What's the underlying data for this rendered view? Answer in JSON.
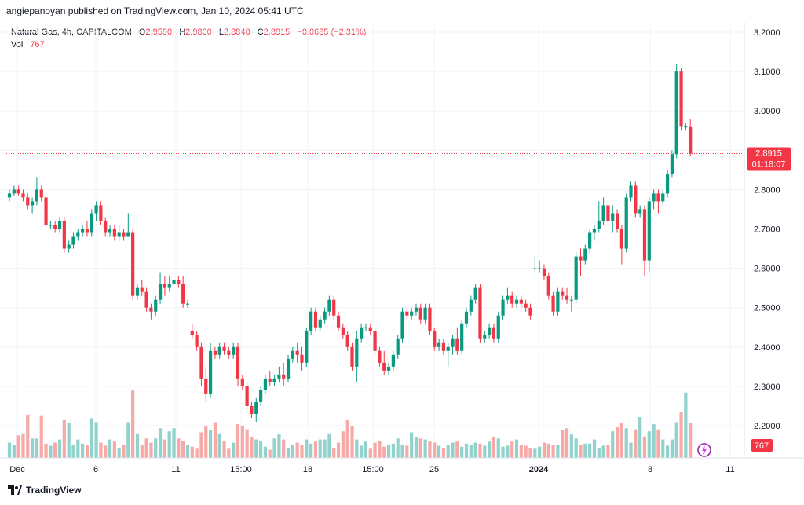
{
  "header": {
    "published": "angiepanoyan published on TradingView.com, Jan 10, 2024 05:41 UTC"
  },
  "legend": {
    "symbol": "Natural Gas, 4h, CAPITALCOM",
    "o_label": "O",
    "o_value": "2.9590",
    "h_label": "H",
    "h_value": "2.9800",
    "l_label": "L",
    "l_value": "2.8840",
    "c_label": "C",
    "c_value": "2.8915",
    "change": "−0.0685 (−2.31%)",
    "vol_label": "Vol",
    "vol_value": "767"
  },
  "price_tag": {
    "price": "2.8915",
    "countdown": "01:18:07"
  },
  "volume_tag": "767",
  "footer": {
    "brand": "TradingView"
  },
  "colors": {
    "up": "#089981",
    "down": "#f23645",
    "up_vol": "#92d2cc",
    "down_vol": "#f7a9a7",
    "grid": "#f0f3fa",
    "text": "#131722"
  },
  "chart_data": {
    "type": "candlestick",
    "title": "Natural Gas, 4h, CAPITALCOM",
    "ylim": [
      2.12,
      3.24
    ],
    "y_ticks": [
      "3.2000",
      "3.1000",
      "3.0000",
      "2.9000",
      "2.8000",
      "2.7000",
      "2.6000",
      "2.5000",
      "2.4000",
      "2.3000",
      "2.2000"
    ],
    "x_ticks": [
      "Dec",
      "6",
      "11",
      "15:00",
      "18",
      "15:00",
      "25",
      "2024",
      "8",
      "11"
    ],
    "last_price": 2.8915,
    "bar_count": 150,
    "candles": [
      [
        2.78,
        2.8,
        2.77,
        2.79
      ],
      [
        2.79,
        2.81,
        2.785,
        2.8
      ],
      [
        2.8,
        2.81,
        2.785,
        2.79
      ],
      [
        2.79,
        2.8,
        2.77,
        2.78
      ],
      [
        2.78,
        2.79,
        2.75,
        2.76
      ],
      [
        2.76,
        2.78,
        2.74,
        2.77
      ],
      [
        2.77,
        2.83,
        2.76,
        2.8
      ],
      [
        2.8,
        2.81,
        2.77,
        2.78
      ],
      [
        2.78,
        2.78,
        2.7,
        2.71
      ],
      [
        2.71,
        2.72,
        2.7,
        2.71
      ],
      [
        2.71,
        2.72,
        2.69,
        2.7
      ],
      [
        2.7,
        2.73,
        2.69,
        2.72
      ],
      [
        2.72,
        2.73,
        2.64,
        2.65
      ],
      [
        2.65,
        2.67,
        2.64,
        2.66
      ],
      [
        2.66,
        2.69,
        2.65,
        2.68
      ],
      [
        2.68,
        2.7,
        2.67,
        2.69
      ],
      [
        2.69,
        2.71,
        2.68,
        2.7
      ],
      [
        2.7,
        2.72,
        2.68,
        2.69
      ],
      [
        2.69,
        2.75,
        2.68,
        2.74
      ],
      [
        2.74,
        2.77,
        2.72,
        2.76
      ],
      [
        2.76,
        2.77,
        2.71,
        2.72
      ],
      [
        2.72,
        2.73,
        2.68,
        2.69
      ],
      [
        2.69,
        2.71,
        2.68,
        2.7
      ],
      [
        2.7,
        2.71,
        2.67,
        2.68
      ],
      [
        2.68,
        2.71,
        2.67,
        2.69
      ],
      [
        2.69,
        2.7,
        2.67,
        2.68
      ],
      [
        2.68,
        2.74,
        2.68,
        2.69
      ],
      [
        2.69,
        2.7,
        2.52,
        2.53
      ],
      [
        2.53,
        2.56,
        2.52,
        2.55
      ],
      [
        2.55,
        2.57,
        2.53,
        2.54
      ],
      [
        2.54,
        2.55,
        2.49,
        2.5
      ],
      [
        2.5,
        2.51,
        2.47,
        2.49
      ],
      [
        2.49,
        2.53,
        2.48,
        2.52
      ],
      [
        2.52,
        2.59,
        2.51,
        2.56
      ],
      [
        2.56,
        2.58,
        2.53,
        2.55
      ],
      [
        2.55,
        2.58,
        2.54,
        2.56
      ],
      [
        2.56,
        2.58,
        2.55,
        2.57
      ],
      [
        2.57,
        2.58,
        2.55,
        2.56
      ],
      [
        2.56,
        2.58,
        2.5,
        2.51
      ],
      [
        2.51,
        2.52,
        2.5,
        2.51
      ],
      [
        2.44,
        2.46,
        2.42,
        2.43
      ],
      [
        2.43,
        2.44,
        2.39,
        2.4
      ],
      [
        2.4,
        2.41,
        2.3,
        2.32
      ],
      [
        2.32,
        2.35,
        2.26,
        2.28
      ],
      [
        2.28,
        2.41,
        2.27,
        2.39
      ],
      [
        2.39,
        2.4,
        2.37,
        2.38
      ],
      [
        2.38,
        2.41,
        2.37,
        2.4
      ],
      [
        2.4,
        2.41,
        2.38,
        2.39
      ],
      [
        2.39,
        2.4,
        2.37,
        2.38
      ],
      [
        2.38,
        2.41,
        2.37,
        2.4
      ],
      [
        2.4,
        2.41,
        2.3,
        2.32
      ],
      [
        2.32,
        2.33,
        2.29,
        2.3
      ],
      [
        2.3,
        2.31,
        2.24,
        2.25
      ],
      [
        2.25,
        2.26,
        2.22,
        2.23
      ],
      [
        2.23,
        2.27,
        2.21,
        2.26
      ],
      [
        2.26,
        2.3,
        2.25,
        2.29
      ],
      [
        2.29,
        2.33,
        2.28,
        2.32
      ],
      [
        2.32,
        2.34,
        2.3,
        2.31
      ],
      [
        2.31,
        2.33,
        2.3,
        2.32
      ],
      [
        2.32,
        2.35,
        2.31,
        2.33
      ],
      [
        2.33,
        2.36,
        2.3,
        2.32
      ],
      [
        2.32,
        2.38,
        2.31,
        2.37
      ],
      [
        2.37,
        2.4,
        2.36,
        2.39
      ],
      [
        2.39,
        2.41,
        2.36,
        2.38
      ],
      [
        2.38,
        2.4,
        2.34,
        2.36
      ],
      [
        2.36,
        2.45,
        2.35,
        2.44
      ],
      [
        2.44,
        2.5,
        2.43,
        2.49
      ],
      [
        2.49,
        2.5,
        2.44,
        2.45
      ],
      [
        2.45,
        2.48,
        2.44,
        2.47
      ],
      [
        2.47,
        2.5,
        2.46,
        2.49
      ],
      [
        2.49,
        2.53,
        2.48,
        2.52
      ],
      [
        2.52,
        2.53,
        2.47,
        2.48
      ],
      [
        2.48,
        2.49,
        2.44,
        2.45
      ],
      [
        2.45,
        2.46,
        2.42,
        2.43
      ],
      [
        2.43,
        2.44,
        2.39,
        2.4
      ],
      [
        2.4,
        2.41,
        2.34,
        2.35
      ],
      [
        2.35,
        2.44,
        2.31,
        2.42
      ],
      [
        2.42,
        2.46,
        2.41,
        2.45
      ],
      [
        2.45,
        2.46,
        2.44,
        2.45
      ],
      [
        2.45,
        2.46,
        2.43,
        2.44
      ],
      [
        2.44,
        2.45,
        2.38,
        2.39
      ],
      [
        2.39,
        2.4,
        2.35,
        2.36
      ],
      [
        2.36,
        2.39,
        2.33,
        2.34
      ],
      [
        2.34,
        2.36,
        2.33,
        2.35
      ],
      [
        2.35,
        2.39,
        2.34,
        2.38
      ],
      [
        2.38,
        2.43,
        2.37,
        2.42
      ],
      [
        2.42,
        2.5,
        2.41,
        2.49
      ],
      [
        2.49,
        2.5,
        2.47,
        2.48
      ],
      [
        2.48,
        2.5,
        2.47,
        2.49
      ],
      [
        2.49,
        2.51,
        2.48,
        2.5
      ],
      [
        2.5,
        2.51,
        2.46,
        2.47
      ],
      [
        2.47,
        2.51,
        2.46,
        2.5
      ],
      [
        2.5,
        2.51,
        2.43,
        2.44
      ],
      [
        2.44,
        2.45,
        2.39,
        2.4
      ],
      [
        2.4,
        2.42,
        2.39,
        2.41
      ],
      [
        2.41,
        2.42,
        2.38,
        2.39
      ],
      [
        2.39,
        2.41,
        2.35,
        2.4
      ],
      [
        2.4,
        2.43,
        2.38,
        2.42
      ],
      [
        2.42,
        2.45,
        2.38,
        2.39
      ],
      [
        2.39,
        2.47,
        2.38,
        2.46
      ],
      [
        2.46,
        2.5,
        2.45,
        2.49
      ],
      [
        2.49,
        2.53,
        2.48,
        2.52
      ],
      [
        2.52,
        2.56,
        2.51,
        2.55
      ],
      [
        2.55,
        2.56,
        2.41,
        2.42
      ],
      [
        2.42,
        2.44,
        2.41,
        2.43
      ],
      [
        2.43,
        2.46,
        2.42,
        2.45
      ],
      [
        2.45,
        2.46,
        2.41,
        2.42
      ],
      [
        2.42,
        2.49,
        2.41,
        2.48
      ],
      [
        2.48,
        2.53,
        2.47,
        2.52
      ],
      [
        2.52,
        2.55,
        2.51,
        2.53
      ],
      [
        2.53,
        2.54,
        2.5,
        2.51
      ],
      [
        2.51,
        2.53,
        2.5,
        2.52
      ],
      [
        2.52,
        2.53,
        2.5,
        2.51
      ],
      [
        2.51,
        2.52,
        2.49,
        2.5
      ],
      [
        2.5,
        2.51,
        2.47,
        2.48
      ],
      [
        2.6,
        2.63,
        2.59,
        2.6
      ],
      [
        2.6,
        2.62,
        2.59,
        2.6
      ],
      [
        2.6,
        2.61,
        2.57,
        2.58
      ],
      [
        2.58,
        2.59,
        2.52,
        2.53
      ],
      [
        2.53,
        2.54,
        2.48,
        2.49
      ],
      [
        2.49,
        2.55,
        2.48,
        2.54
      ],
      [
        2.54,
        2.55,
        2.52,
        2.53
      ],
      [
        2.53,
        2.55,
        2.51,
        2.52
      ],
      [
        2.52,
        2.53,
        2.49,
        2.52
      ],
      [
        2.52,
        2.64,
        2.51,
        2.63
      ],
      [
        2.63,
        2.65,
        2.58,
        2.62
      ],
      [
        2.62,
        2.66,
        2.61,
        2.65
      ],
      [
        2.65,
        2.7,
        2.64,
        2.69
      ],
      [
        2.69,
        2.71,
        2.67,
        2.7
      ],
      [
        2.7,
        2.77,
        2.69,
        2.72
      ],
      [
        2.72,
        2.78,
        2.71,
        2.76
      ],
      [
        2.76,
        2.77,
        2.71,
        2.72
      ],
      [
        2.72,
        2.76,
        2.69,
        2.74
      ],
      [
        2.74,
        2.75,
        2.69,
        2.7
      ],
      [
        2.7,
        2.71,
        2.61,
        2.65
      ],
      [
        2.65,
        2.79,
        2.64,
        2.78
      ],
      [
        2.78,
        2.82,
        2.77,
        2.81
      ],
      [
        2.81,
        2.82,
        2.73,
        2.74
      ],
      [
        2.74,
        2.76,
        2.73,
        2.75
      ],
      [
        2.75,
        2.76,
        2.58,
        2.62
      ],
      [
        2.62,
        2.78,
        2.59,
        2.77
      ],
      [
        2.77,
        2.8,
        2.75,
        2.79
      ],
      [
        2.79,
        2.8,
        2.74,
        2.77
      ],
      [
        2.77,
        2.8,
        2.76,
        2.79
      ],
      [
        2.79,
        2.85,
        2.78,
        2.84
      ],
      [
        2.84,
        2.9,
        2.83,
        2.89
      ],
      [
        2.89,
        3.12,
        2.88,
        3.1
      ],
      [
        3.1,
        3.11,
        2.95,
        2.96
      ],
      [
        2.96,
        2.97,
        2.95,
        2.96
      ],
      [
        2.959,
        2.98,
        2.884,
        2.8915
      ]
    ],
    "volumes": [
      30,
      26,
      44,
      48,
      85,
      38,
      38,
      82,
      28,
      24,
      30,
      36,
      74,
      68,
      26,
      36,
      28,
      26,
      78,
      70,
      30,
      24,
      36,
      32,
      20,
      26,
      70,
      132,
      48,
      26,
      38,
      30,
      38,
      58,
      36,
      52,
      58,
      38,
      34,
      26,
      22,
      18,
      50,
      62,
      54,
      70,
      48,
      34,
      18,
      30,
      66,
      62,
      56,
      40,
      36,
      34,
      22,
      16,
      38,
      46,
      36,
      20,
      26,
      30,
      26,
      36,
      28,
      32,
      36,
      36,
      48,
      20,
      30,
      52,
      74,
      62,
      36,
      24,
      32,
      18,
      30,
      34,
      22,
      26,
      28,
      38,
      26,
      24,
      50,
      40,
      38,
      36,
      32,
      30,
      24,
      20,
      26,
      30,
      32,
      22,
      28,
      26,
      30,
      28,
      24,
      32,
      40,
      38,
      22,
      24,
      32,
      36,
      26,
      24,
      20,
      18,
      22,
      30,
      28,
      26,
      26,
      54,
      58,
      46,
      38,
      26,
      28,
      28,
      36,
      20,
      24,
      26,
      52,
      60,
      68,
      58,
      30,
      56,
      80,
      42,
      52,
      66,
      56,
      36,
      24,
      36,
      70,
      90,
      128,
      68
    ]
  }
}
